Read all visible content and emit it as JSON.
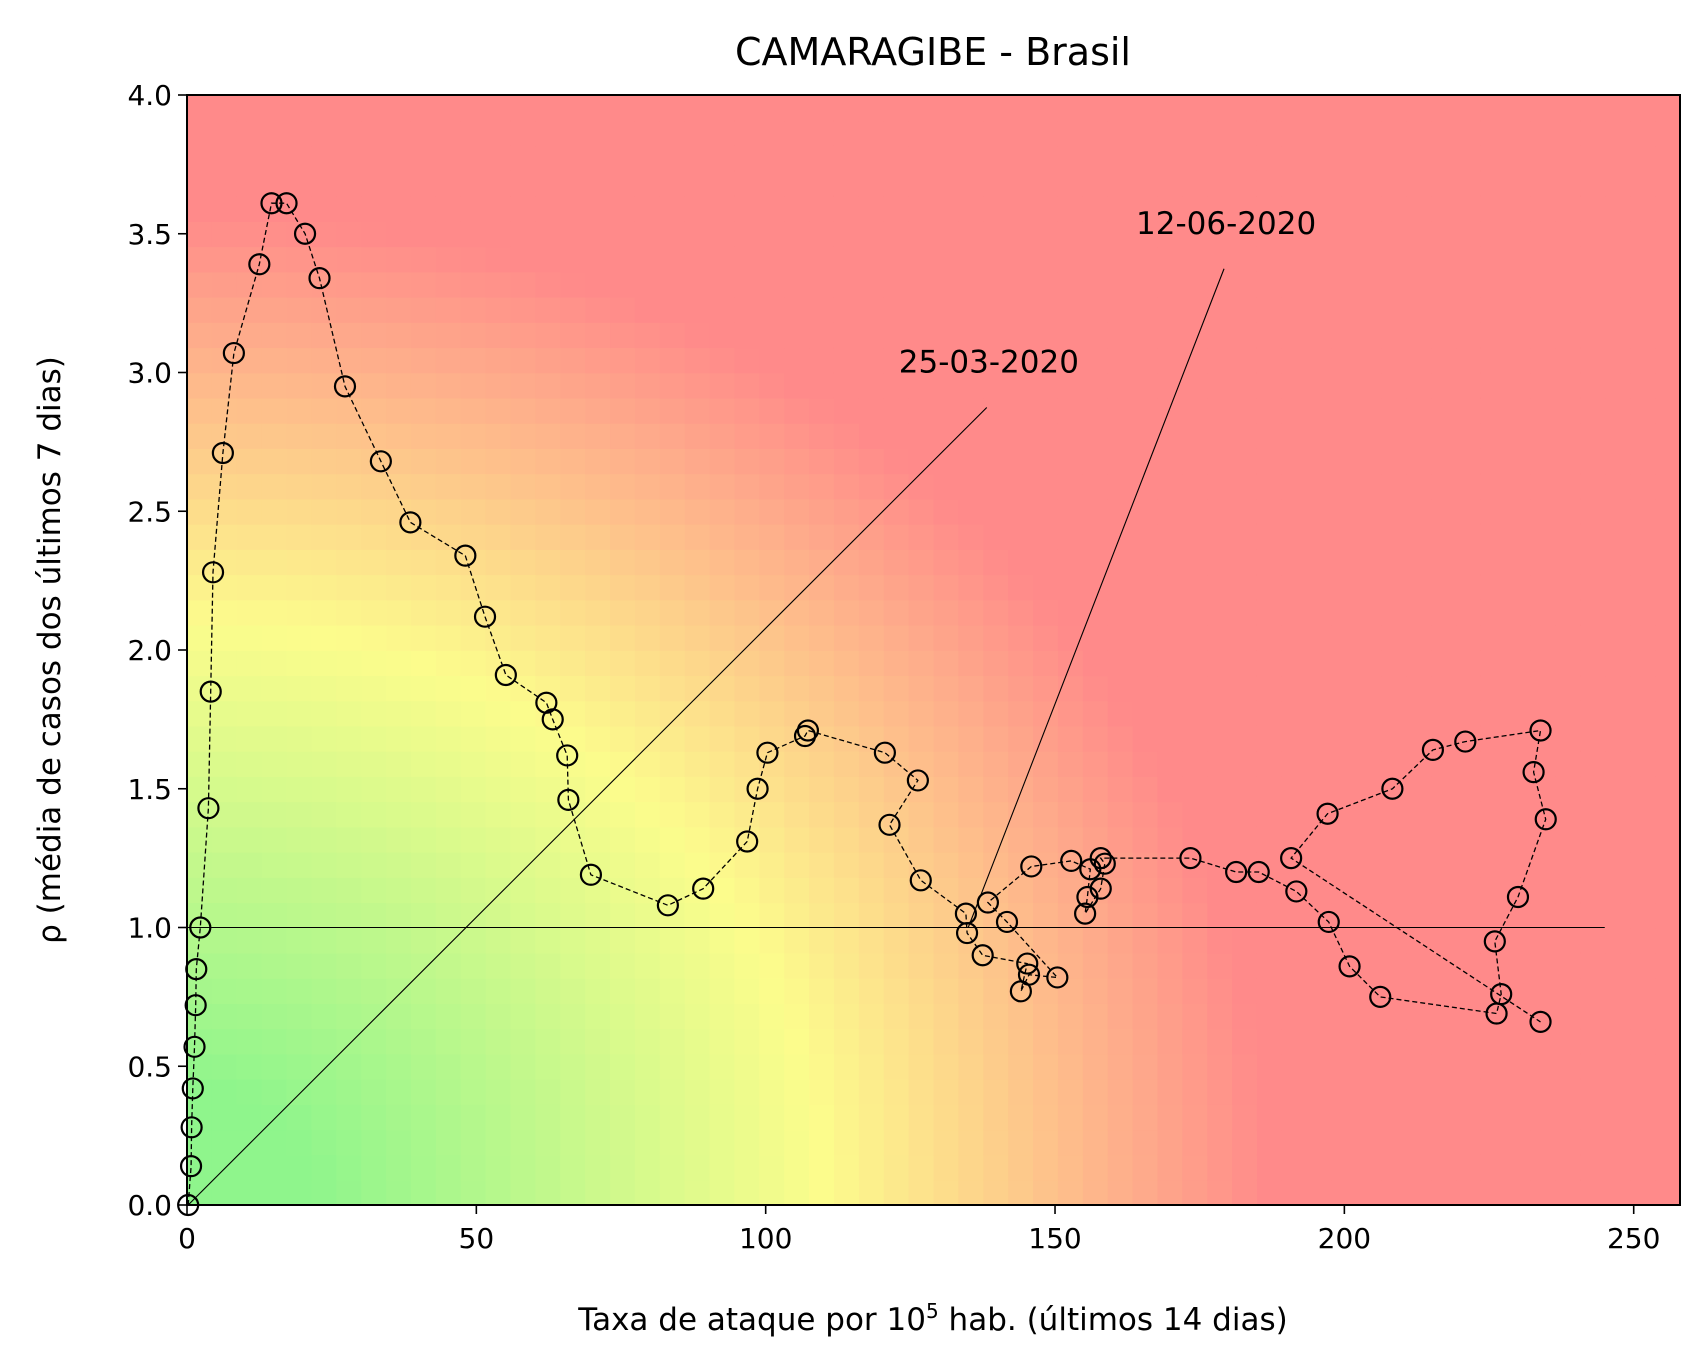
{
  "chart_data": {
    "type": "scatter",
    "title": "CAMARAGIBE - Brasil",
    "xlabel_main": "Taxa de ataque por 10",
    "xlabel_sup": "5",
    "xlabel_rest": " hab. (últimos 14 dias)",
    "ylabel": "ρ (média de casos dos últimos 7 dias)",
    "xlim": [
      0,
      258
    ],
    "ylim": [
      0,
      4.0
    ],
    "xticks": [
      0,
      50,
      100,
      150,
      200,
      250
    ],
    "yticks": [
      0.0,
      0.5,
      1.0,
      1.5,
      2.0,
      2.5,
      3.0,
      3.5,
      4.0
    ],
    "ytick_labels": [
      "0.0",
      "0.5",
      "1.0",
      "1.5",
      "2.0",
      "2.5",
      "3.0",
      "3.5",
      "4.0"
    ],
    "reference_line": {
      "y": 1.0,
      "x_range": [
        0,
        245
      ]
    },
    "annotations": [
      {
        "text": "25-03-2020",
        "point": [
          0.2,
          0.0
        ],
        "text_pos": [
          123,
          3.0
        ]
      },
      {
        "text": "12-06-2020",
        "point": [
          135,
          1.0
        ],
        "text_pos": [
          164,
          3.5
        ]
      }
    ],
    "background_colors": {
      "green": "#8ff58c",
      "yellow": "#fcfc8c",
      "red": "#ff8a8a"
    },
    "series": [
      {
        "marker": "circle-open",
        "line": "dashed",
        "x": [
          0.2,
          0.7,
          0.8,
          1.0,
          1.3,
          1.5,
          1.6,
          2.3,
          3.7,
          4.1,
          4.5,
          6.2,
          8.1,
          12.5,
          14.6,
          17.2,
          20.4,
          22.9,
          27.3,
          33.5,
          38.6,
          48.1,
          51.5,
          55.1,
          62.1,
          63.2,
          65.7,
          65.9,
          69.8,
          83.1,
          89.2,
          96.8,
          98.6,
          100.3,
          106.8,
          107.3,
          120.6,
          126.3,
          121.4,
          126.8,
          134.6,
          134.8,
          137.5,
          145.2,
          144.1,
          145.5,
          150.4,
          141.7,
          138.4,
          145.9,
          152.8,
          156.1,
          155.6,
          155.2,
          157.9,
          158.6,
          157.9,
          173.4,
          181.3,
          185.2,
          191.7,
          197.3,
          200.9,
          206.2,
          226.3,
          227.1,
          226.0,
          230.0,
          234.8,
          232.7,
          233.9,
          220.9,
          215.3,
          208.3,
          197.1,
          190.8,
          233.9
        ],
        "y": [
          0.0,
          0.14,
          0.28,
          0.42,
          0.57,
          0.72,
          0.85,
          1.0,
          1.43,
          1.85,
          2.28,
          2.71,
          3.07,
          3.39,
          3.61,
          3.61,
          3.5,
          3.34,
          2.95,
          2.68,
          2.46,
          2.34,
          2.12,
          1.91,
          1.81,
          1.75,
          1.62,
          1.46,
          1.19,
          1.08,
          1.14,
          1.31,
          1.5,
          1.63,
          1.69,
          1.71,
          1.63,
          1.53,
          1.37,
          1.17,
          1.05,
          0.98,
          0.9,
          0.87,
          0.77,
          0.83,
          0.82,
          1.02,
          1.09,
          1.22,
          1.24,
          1.21,
          1.11,
          1.05,
          1.14,
          1.23,
          1.25,
          1.25,
          1.2,
          1.2,
          1.13,
          1.02,
          0.86,
          0.75,
          0.69,
          0.76,
          0.95,
          1.11,
          1.39,
          1.56,
          1.71,
          1.67,
          1.64,
          1.5,
          1.41,
          1.25,
          0.66
        ]
      }
    ]
  }
}
